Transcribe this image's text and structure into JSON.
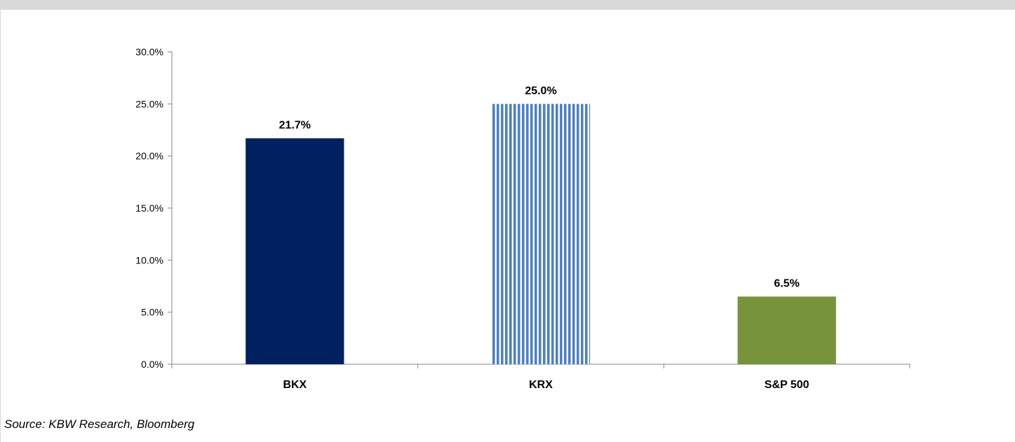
{
  "chart_data": {
    "type": "bar",
    "categories": [
      "BKX",
      "KRX",
      "S&P 500"
    ],
    "values": [
      21.7,
      25.0,
      6.5
    ],
    "data_labels": [
      "21.7%",
      "25.0%",
      "6.5%"
    ],
    "ylim": [
      0,
      30
    ],
    "yticks": [
      0,
      5,
      10,
      15,
      20,
      25,
      30
    ],
    "ytick_labels": [
      "0.0%",
      "5.0%",
      "10.0%",
      "15.0%",
      "20.0%",
      "25.0%",
      "30.0%"
    ],
    "title": "",
    "xlabel": "",
    "ylabel": "",
    "grid": false,
    "legend": "none",
    "bar_colors": [
      "#002060",
      "#4f81bd",
      "#77933c"
    ],
    "bar_patterns": [
      "solid",
      "vertical-stripes",
      "solid"
    ]
  },
  "source_note": "Source: KBW Research, Bloomberg"
}
